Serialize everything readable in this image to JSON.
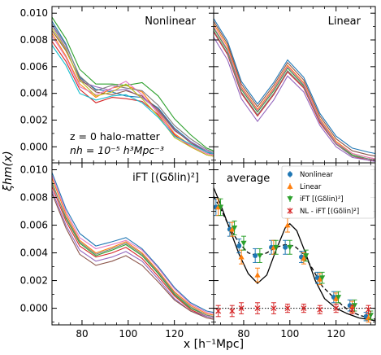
{
  "chart_data": {
    "type": "line",
    "xlabel": "x [h⁻¹Mpc]",
    "ylabel": "ξhm(x)",
    "xlim": [
      67,
      137
    ],
    "ylim": [
      -0.0012,
      0.0105
    ],
    "xticks": [
      "80",
      "100",
      "120"
    ],
    "xtick_values": [
      80,
      100,
      120
    ],
    "yticks": [
      "0.000",
      "0.002",
      "0.004",
      "0.006",
      "0.008",
      "0.010"
    ],
    "ytick_values": [
      0.0,
      0.002,
      0.004,
      0.006,
      0.008,
      0.01
    ],
    "grid": false,
    "annotations": {
      "line1": "z = 0  halo-matter",
      "line2": "nh = 10⁻⁵ h³Mpc⁻³"
    },
    "x": [
      67,
      73,
      79,
      86,
      93,
      99,
      106,
      113,
      120,
      127,
      134,
      137
    ],
    "panels": [
      {
        "title": "Nonlinear",
        "position": "top-left",
        "curves": [
          [
            0.0094,
            0.0077,
            0.0052,
            0.0043,
            0.0041,
            0.0038,
            0.0037,
            0.0029,
            0.0014,
            0.0004,
            -0.0004,
            -0.0006
          ],
          [
            0.0085,
            0.0068,
            0.0047,
            0.0037,
            0.0044,
            0.0046,
            0.0041,
            0.0026,
            0.001,
            0.0001,
            -0.0005,
            -0.0006
          ],
          [
            0.0097,
            0.0081,
            0.0058,
            0.0047,
            0.0047,
            0.0046,
            0.0048,
            0.0038,
            0.0021,
            0.0009,
            -0.0001,
            -0.0003
          ],
          [
            0.0079,
            0.0064,
            0.0043,
            0.0033,
            0.0037,
            0.0036,
            0.0034,
            0.0024,
            0.0009,
            0.0,
            -0.0006,
            -0.0007
          ],
          [
            0.0091,
            0.0074,
            0.0049,
            0.0045,
            0.0042,
            0.0043,
            0.0037,
            0.0027,
            0.0012,
            0.0004,
            -0.0003,
            -0.0005
          ],
          [
            0.0087,
            0.0072,
            0.0051,
            0.0041,
            0.0039,
            0.0042,
            0.0038,
            0.0028,
            0.0013,
            0.0003,
            -0.0004,
            -0.0005
          ],
          [
            0.0083,
            0.0067,
            0.0045,
            0.0039,
            0.0044,
            0.0049,
            0.0039,
            0.0025,
            0.0008,
            0.0001,
            -0.0005,
            -0.0006
          ],
          [
            0.0092,
            0.0076,
            0.0053,
            0.0042,
            0.0046,
            0.0044,
            0.0042,
            0.0031,
            0.0016,
            0.0006,
            -0.0002,
            -0.0004
          ],
          [
            0.0089,
            0.0073,
            0.005,
            0.0038,
            0.0041,
            0.0047,
            0.0036,
            0.0023,
            0.0007,
            0.0,
            -0.0006,
            -0.0007
          ],
          [
            0.0076,
            0.0061,
            0.004,
            0.0035,
            0.0038,
            0.0039,
            0.0033,
            0.0022,
            0.0008,
            0.0002,
            -0.0004,
            -0.0005
          ]
        ]
      },
      {
        "title": "Linear",
        "position": "top-right",
        "curves": [
          [
            0.0096,
            0.0079,
            0.0049,
            0.0032,
            0.0048,
            0.0065,
            0.0052,
            0.0025,
            0.0008,
            -0.0001,
            -0.0004,
            -0.0005
          ],
          [
            0.0092,
            0.0075,
            0.0045,
            0.0028,
            0.0044,
            0.0061,
            0.0048,
            0.0021,
            0.0004,
            -0.0005,
            -0.0008,
            -0.0009
          ],
          [
            0.0089,
            0.0072,
            0.0043,
            0.0026,
            0.0042,
            0.0059,
            0.0046,
            0.002,
            0.0003,
            -0.0006,
            -0.0009,
            -0.001
          ],
          [
            0.0086,
            0.0069,
            0.004,
            0.0023,
            0.0039,
            0.0056,
            0.0044,
            0.0018,
            0.0002,
            -0.0007,
            -0.001,
            -0.001
          ],
          [
            0.0082,
            0.0065,
            0.0036,
            0.0019,
            0.0035,
            0.0053,
            0.0041,
            0.0016,
            0.0,
            -0.0008,
            -0.001,
            -0.0011
          ],
          [
            0.0094,
            0.0077,
            0.0047,
            0.003,
            0.0046,
            0.0063,
            0.005,
            0.0023,
            0.0006,
            -0.0003,
            -0.0006,
            -0.0007
          ],
          [
            0.009,
            0.0073,
            0.0044,
            0.0027,
            0.0043,
            0.006,
            0.0047,
            0.002,
            0.0003,
            -0.0005,
            -0.0008,
            -0.0009
          ],
          [
            0.0087,
            0.007,
            0.0041,
            0.0024,
            0.004,
            0.0057,
            0.0045,
            0.0019,
            0.0002,
            -0.0007,
            -0.0009,
            -0.001
          ]
        ]
      },
      {
        "title": "iFT [(Gδlin)²]",
        "position": "bottom-left",
        "curves": [
          [
            0.0098,
            0.0072,
            0.0054,
            0.0045,
            0.0048,
            0.0051,
            0.0043,
            0.003,
            0.0015,
            0.0004,
            -0.0002,
            -0.0003
          ],
          [
            0.0094,
            0.0068,
            0.0049,
            0.004,
            0.0044,
            0.0048,
            0.004,
            0.0027,
            0.0012,
            0.0002,
            -0.0004,
            -0.0005
          ],
          [
            0.0091,
            0.0065,
            0.0047,
            0.0038,
            0.0042,
            0.0046,
            0.0038,
            0.0025,
            0.001,
            0.0,
            -0.0005,
            -0.0006
          ],
          [
            0.0088,
            0.0063,
            0.0045,
            0.0037,
            0.004,
            0.0044,
            0.0036,
            0.0023,
            0.0009,
            -0.0001,
            -0.0006,
            -0.0007
          ],
          [
            0.0085,
            0.006,
            0.0042,
            0.0034,
            0.0037,
            0.0041,
            0.0034,
            0.0021,
            0.0007,
            -0.0002,
            -0.0006,
            -0.0007
          ],
          [
            0.0083,
            0.0058,
            0.0039,
            0.0031,
            0.0034,
            0.0038,
            0.0031,
            0.0019,
            0.0006,
            -0.0002,
            -0.0007,
            -0.0008
          ],
          [
            0.0096,
            0.007,
            0.0051,
            0.0043,
            0.0046,
            0.0049,
            0.0042,
            0.0029,
            0.0014,
            0.0003,
            -0.0003,
            -0.0004
          ],
          [
            0.009,
            0.0066,
            0.0048,
            0.0039,
            0.0043,
            0.0047,
            0.0039,
            0.0026,
            0.0011,
            0.0001,
            -0.0005,
            -0.0006
          ]
        ]
      },
      {
        "title": "average",
        "position": "bottom-right",
        "legend": [
          {
            "label": "Nonlinear",
            "color": "#1f77b4",
            "marker": "circle"
          },
          {
            "label": "Linear",
            "color": "#ff7f0e",
            "marker": "triangle-up"
          },
          {
            "label": "iFT [(Gδlin)²]",
            "color": "#2ca02c",
            "marker": "triangle-down"
          },
          {
            "label": "NL - iFT [(Gδlin)²]",
            "color": "#d62728",
            "marker": "x"
          }
        ],
        "points": {
          "x": [
            69,
            75,
            79,
            86,
            93,
            99,
            106,
            113,
            120,
            127,
            134
          ],
          "nonlinear": [
            0.0073,
            0.0057,
            0.0045,
            0.0038,
            0.0044,
            0.0044,
            0.0037,
            0.0022,
            0.0008,
            0.0002,
            -0.0006
          ],
          "linear": [
            0.0073,
            0.0057,
            0.0037,
            0.0024,
            0.0044,
            0.006,
            0.0036,
            0.0021,
            0.0007,
            0.0001,
            -0.0007
          ],
          "ift": [
            0.0073,
            0.0058,
            0.0047,
            0.0038,
            0.0044,
            0.0044,
            0.0038,
            0.0022,
            0.0008,
            0.0002,
            -0.0005
          ],
          "nl_ift": [
            -0.0002,
            -0.0002,
            0.0,
            0.0,
            0.0,
            0.0,
            0.0,
            -0.0001,
            0.0,
            -0.0001,
            -0.0001
          ],
          "errors": [
            0.0006,
            0.0005,
            0.0005,
            0.0005,
            0.0005,
            0.0005,
            0.0004,
            0.0004,
            0.0004,
            0.0004,
            0.0003
          ],
          "nl_ift_errors": [
            0.0004,
            0.0004,
            0.0004,
            0.0004,
            0.0004,
            0.0003,
            0.0003,
            0.0003,
            0.0003,
            0.0003,
            0.0003
          ]
        },
        "solid_line": {
          "x": [
            67,
            70,
            74,
            78,
            82,
            86,
            90,
            94,
            98,
            100,
            103,
            107,
            111,
            115,
            120,
            125,
            130,
            137
          ],
          "y": [
            0.0087,
            0.0075,
            0.0057,
            0.0039,
            0.0025,
            0.0018,
            0.0024,
            0.0042,
            0.0058,
            0.0061,
            0.0056,
            0.0039,
            0.002,
            0.0007,
            0.0,
            -0.0004,
            -0.0007,
            -0.0009
          ]
        },
        "dashed_line": {
          "x": [
            67,
            70,
            74,
            78,
            82,
            86,
            90,
            94,
            98,
            102,
            106,
            110,
            114,
            120,
            125,
            130,
            137
          ],
          "y": [
            0.0081,
            0.0072,
            0.0058,
            0.0047,
            0.004,
            0.0038,
            0.004,
            0.0044,
            0.0046,
            0.0045,
            0.0039,
            0.0028,
            0.0016,
            0.0006,
            -0.0001,
            -0.0005,
            -0.0008
          ]
        },
        "zero_line": 0.0
      }
    ]
  },
  "colors": {
    "palette": [
      "#1f77b4",
      "#ff7f0e",
      "#2ca02c",
      "#d62728",
      "#9467bd",
      "#8c564b",
      "#e377c2",
      "#7f7f7f",
      "#bcbd22",
      "#17becf"
    ]
  }
}
